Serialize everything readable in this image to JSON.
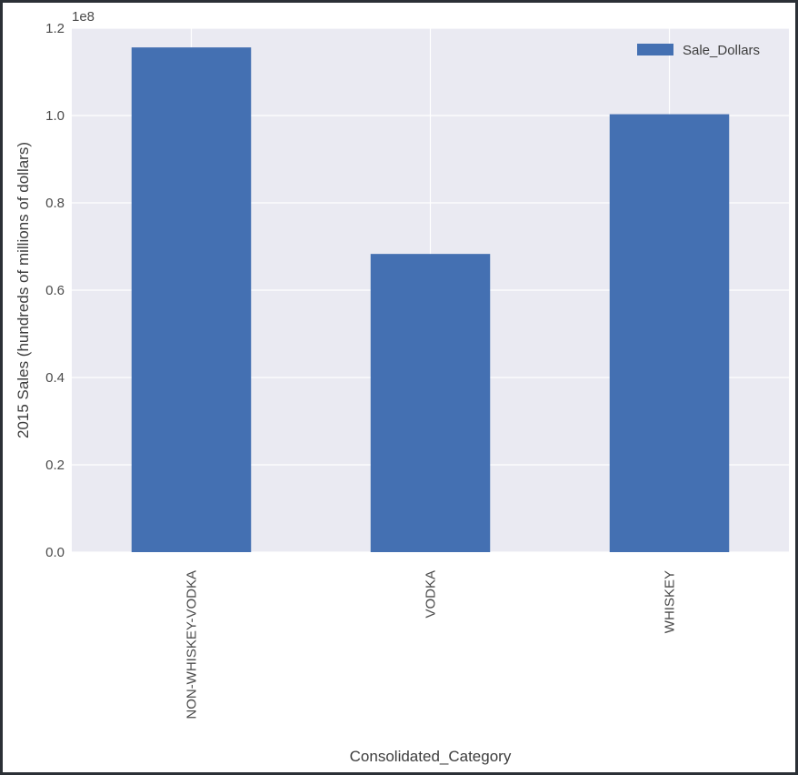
{
  "chart_data": {
    "type": "bar",
    "categories": [
      "NON-WHISKEY-VODKA",
      "VODKA",
      "WHISKEY"
    ],
    "series": [
      {
        "name": "Sale_Dollars",
        "values": [
          115600000,
          68300000,
          100300000
        ],
        "color": "#4470b2"
      }
    ],
    "xlabel": "Consolidated_Category",
    "ylabel": "2015 Sales (hundreds of millions of dollars)",
    "ylim": [
      0,
      120000000
    ],
    "yticks": [
      0,
      20000000,
      40000000,
      60000000,
      80000000,
      100000000,
      120000000
    ],
    "ytick_labels": [
      "0.0",
      "0.2",
      "0.4",
      "0.6",
      "0.8",
      "1.0",
      "1.2"
    ],
    "offset_label": "1e8",
    "grid": true,
    "legend": "top-right",
    "colors": {
      "axes_bg": "#eaeaf2",
      "grid": "#ffffff"
    }
  }
}
